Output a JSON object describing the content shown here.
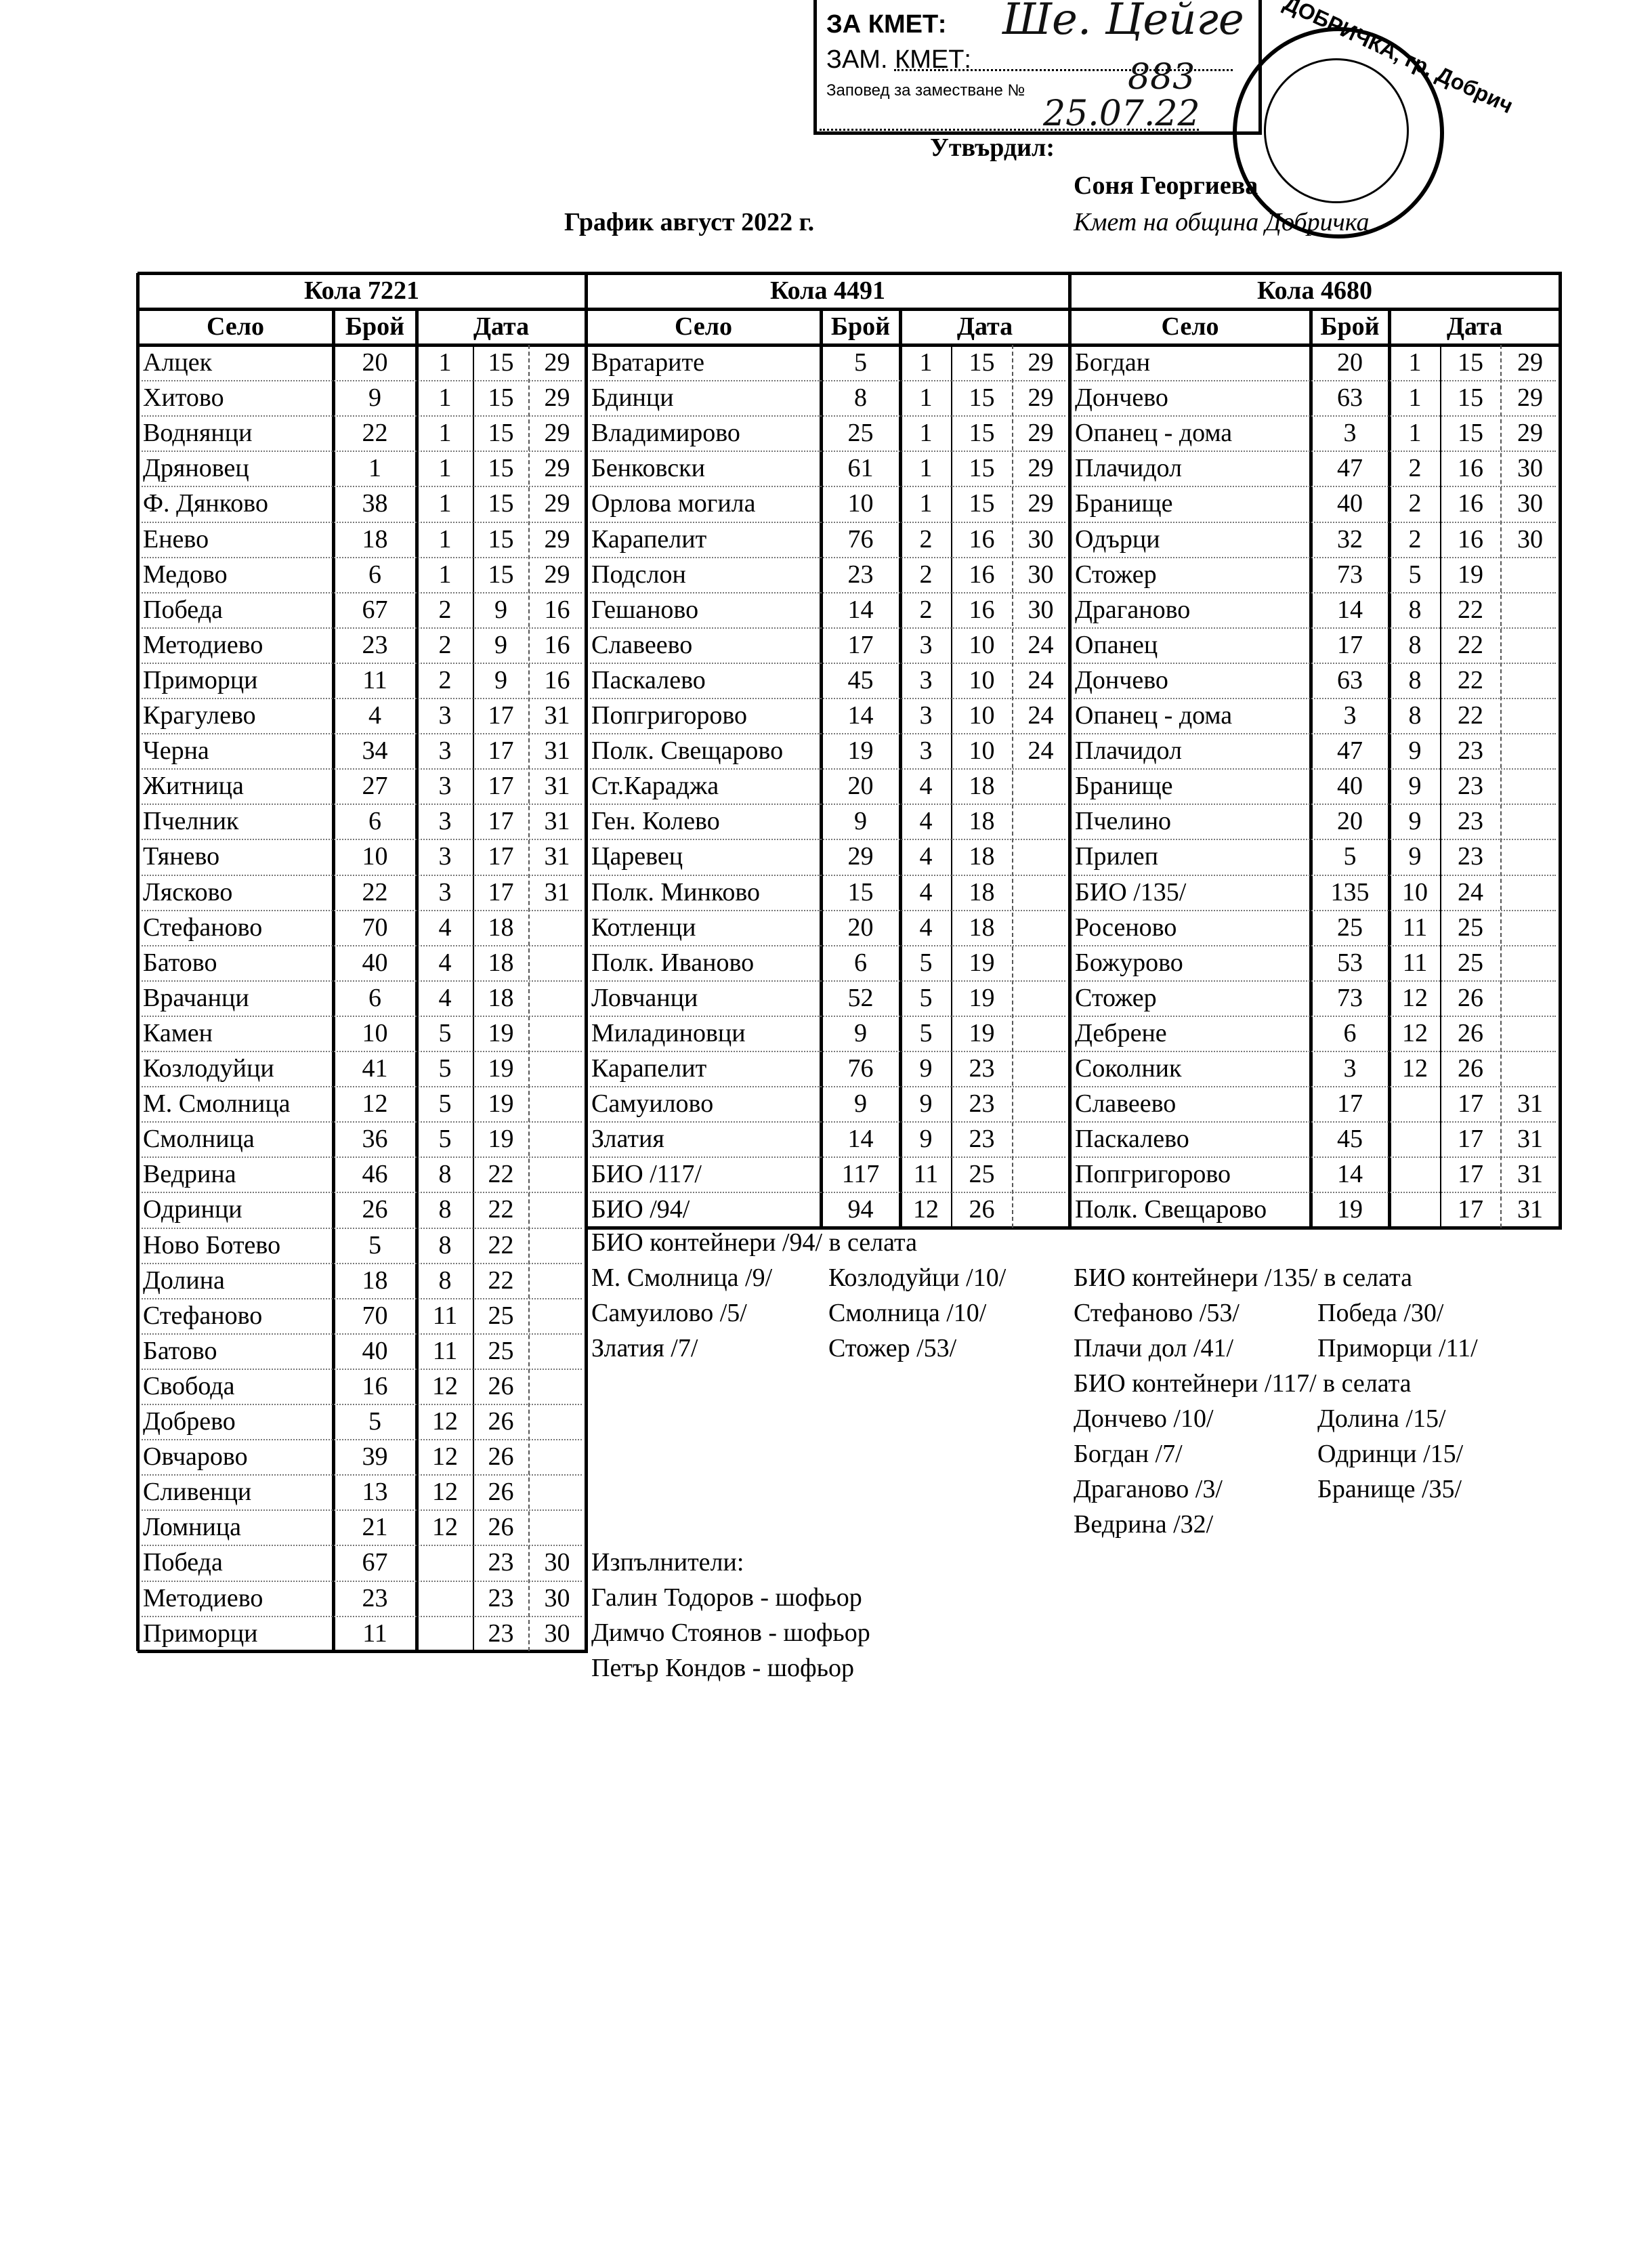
{
  "stamp": {
    "line1": "ЗА КМЕТ:",
    "line2": "ЗАМ. КМЕТ:",
    "line3": "Заповед за заместване №",
    "order_no": "883",
    "date": "25.07.22",
    "seal_text": "ДОБРИЧКА, гр. Добрич"
  },
  "approval": {
    "label": "Утвърдил:",
    "name": "Соня Георгиева",
    "position": "Кмет  на община Добричка"
  },
  "title": "График август 2022 г.",
  "col_headers": {
    "village": "Село",
    "count": "Брой",
    "date": "Дата"
  },
  "vehicles": [
    {
      "name": "Кола 7221",
      "rows": [
        [
          "Алцек",
          "20",
          "1",
          "15",
          "29"
        ],
        [
          "Хитово",
          "9",
          "1",
          "15",
          "29"
        ],
        [
          "Воднянци",
          "22",
          "1",
          "15",
          "29"
        ],
        [
          "Дряновец",
          "1",
          "1",
          "15",
          "29"
        ],
        [
          "Ф. Дянково",
          "38",
          "1",
          "15",
          "29"
        ],
        [
          "Енево",
          "18",
          "1",
          "15",
          "29"
        ],
        [
          "Медово",
          "6",
          "1",
          "15",
          "29"
        ],
        [
          "Победа",
          "67",
          "2",
          "9",
          "16"
        ],
        [
          "Методиево",
          "23",
          "2",
          "9",
          "16"
        ],
        [
          "Приморци",
          "11",
          "2",
          "9",
          "16"
        ],
        [
          "Крагулево",
          "4",
          "3",
          "17",
          "31"
        ],
        [
          "Черна",
          "34",
          "3",
          "17",
          "31"
        ],
        [
          "Житница",
          "27",
          "3",
          "17",
          "31"
        ],
        [
          "Пчелник",
          "6",
          "3",
          "17",
          "31"
        ],
        [
          "Тянево",
          "10",
          "3",
          "17",
          "31"
        ],
        [
          "Лясково",
          "22",
          "3",
          "17",
          "31"
        ],
        [
          "Стефаново",
          "70",
          "4",
          "18",
          ""
        ],
        [
          "Батово",
          "40",
          "4",
          "18",
          ""
        ],
        [
          "Врачанци",
          "6",
          "4",
          "18",
          ""
        ],
        [
          "Камен",
          "10",
          "5",
          "19",
          ""
        ],
        [
          "Козлодуйци",
          "41",
          "5",
          "19",
          ""
        ],
        [
          "М. Смолница",
          "12",
          "5",
          "19",
          ""
        ],
        [
          "Смолница",
          "36",
          "5",
          "19",
          ""
        ],
        [
          "Ведрина",
          "46",
          "8",
          "22",
          ""
        ],
        [
          "Одринци",
          "26",
          "8",
          "22",
          ""
        ],
        [
          "Ново Ботево",
          "5",
          "8",
          "22",
          ""
        ],
        [
          "Долина",
          "18",
          "8",
          "22",
          ""
        ],
        [
          "Стефаново",
          "70",
          "11",
          "25",
          ""
        ],
        [
          "Батово",
          "40",
          "11",
          "25",
          ""
        ],
        [
          "Свобода",
          "16",
          "12",
          "26",
          ""
        ],
        [
          "Добрево",
          "5",
          "12",
          "26",
          ""
        ],
        [
          "Овчарово",
          "39",
          "12",
          "26",
          ""
        ],
        [
          "Сливенци",
          "13",
          "12",
          "26",
          ""
        ],
        [
          "Ломница",
          "21",
          "12",
          "26",
          ""
        ],
        [
          "Победа",
          "67",
          "",
          "23",
          "30"
        ],
        [
          "Методиево",
          "23",
          "",
          "23",
          "30"
        ],
        [
          "Приморци",
          "11",
          "",
          "23",
          "30"
        ]
      ]
    },
    {
      "name": "Кола 4491",
      "rows": [
        [
          "Вратарите",
          "5",
          "1",
          "15",
          "29"
        ],
        [
          "Бдинци",
          "8",
          "1",
          "15",
          "29"
        ],
        [
          "Владимирово",
          "25",
          "1",
          "15",
          "29"
        ],
        [
          "Бенковски",
          "61",
          "1",
          "15",
          "29"
        ],
        [
          "Орлова могила",
          "10",
          "1",
          "15",
          "29"
        ],
        [
          "Карапелит",
          "76",
          "2",
          "16",
          "30"
        ],
        [
          "Подслон",
          "23",
          "2",
          "16",
          "30"
        ],
        [
          "Гешаново",
          "14",
          "2",
          "16",
          "30"
        ],
        [
          "Славеево",
          "17",
          "3",
          "10",
          "24"
        ],
        [
          "Паскалево",
          "45",
          "3",
          "10",
          "24"
        ],
        [
          "Попгригорово",
          "14",
          "3",
          "10",
          "24"
        ],
        [
          "Полк. Свещарово",
          "19",
          "3",
          "10",
          "24"
        ],
        [
          "Ст.Караджа",
          "20",
          "4",
          "18",
          ""
        ],
        [
          "Ген. Колево",
          "9",
          "4",
          "18",
          ""
        ],
        [
          "Царевец",
          "29",
          "4",
          "18",
          ""
        ],
        [
          "Полк. Минково",
          "15",
          "4",
          "18",
          ""
        ],
        [
          "Котленци",
          "20",
          "4",
          "18",
          ""
        ],
        [
          "Полк. Иваново",
          "6",
          "5",
          "19",
          ""
        ],
        [
          "Ловчанци",
          "52",
          "5",
          "19",
          ""
        ],
        [
          "Миладиновци",
          "9",
          "5",
          "19",
          ""
        ],
        [
          "Карапелит",
          "76",
          "9",
          "23",
          ""
        ],
        [
          "Самуилово",
          "9",
          "9",
          "23",
          ""
        ],
        [
          "Златия",
          "14",
          "9",
          "23",
          ""
        ],
        [
          "БИО /117/",
          "117",
          "11",
          "25",
          ""
        ],
        [
          "БИО /94/",
          "94",
          "12",
          "26",
          ""
        ]
      ]
    },
    {
      "name": "Кола 4680",
      "rows": [
        [
          "Богдан",
          "20",
          "1",
          "15",
          "29"
        ],
        [
          "Дончево",
          "63",
          "1",
          "15",
          "29"
        ],
        [
          "Опанец - дома",
          "3",
          "1",
          "15",
          "29"
        ],
        [
          "Плачидол",
          "47",
          "2",
          "16",
          "30"
        ],
        [
          "Бранище",
          "40",
          "2",
          "16",
          "30"
        ],
        [
          "Одърци",
          "32",
          "2",
          "16",
          "30"
        ],
        [
          "Стожер",
          "73",
          "5",
          "19",
          ""
        ],
        [
          "Драганово",
          "14",
          "8",
          "22",
          ""
        ],
        [
          "Опанец",
          "17",
          "8",
          "22",
          ""
        ],
        [
          "Дончево",
          "63",
          "8",
          "22",
          ""
        ],
        [
          "Опанец - дома",
          "3",
          "8",
          "22",
          ""
        ],
        [
          "Плачидол",
          "47",
          "9",
          "23",
          ""
        ],
        [
          "Бранище",
          "40",
          "9",
          "23",
          ""
        ],
        [
          "Пчелино",
          "20",
          "9",
          "23",
          ""
        ],
        [
          "Прилеп",
          "5",
          "9",
          "23",
          ""
        ],
        [
          "БИО /135/",
          "135",
          "10",
          "24",
          ""
        ],
        [
          "Росеново",
          "25",
          "11",
          "25",
          ""
        ],
        [
          "Божурово",
          "53",
          "11",
          "25",
          ""
        ],
        [
          "Стожер",
          "73",
          "12",
          "26",
          ""
        ],
        [
          "Дебрене",
          "6",
          "12",
          "26",
          ""
        ],
        [
          "Соколник",
          "3",
          "12",
          "26",
          ""
        ],
        [
          "Славеево",
          "17",
          "",
          "17",
          "31"
        ],
        [
          "Паскалево",
          "45",
          "",
          "17",
          "31"
        ],
        [
          "Попгригорово",
          "14",
          "",
          "17",
          "31"
        ],
        [
          "Полк. Свещарово",
          "19",
          "",
          "17",
          "31"
        ]
      ]
    }
  ],
  "notes": {
    "bio94": {
      "title": "БИО контейнери /94/ в селата",
      "items": [
        "М. Смолница /9/",
        "Козлодуйци /10/",
        "Самуилово /5/",
        "Смолница /10/",
        "Златия /7/",
        "Стожер /53/"
      ]
    },
    "bio135": {
      "title": "БИО контейнери /135/ в селата",
      "items": [
        "Стефаново /53/",
        "Победа /30/",
        "Плачи дол /41/",
        "Приморци /11/"
      ]
    },
    "bio117": {
      "title": "БИО контейнери /117/ в селата",
      "items": [
        "Дончево /10/",
        "Долина /15/",
        "Богдан /7/",
        "Одринци /15/",
        "Драганово /3/",
        "Бранище /35/",
        "Ведрина /32/"
      ]
    },
    "executors": {
      "title": "Изпълнители:",
      "items": [
        "Галин Тодоров - шофьор",
        "Димчо Стоянов - шофьор",
        "Петър Кондов - шофьор"
      ]
    }
  }
}
